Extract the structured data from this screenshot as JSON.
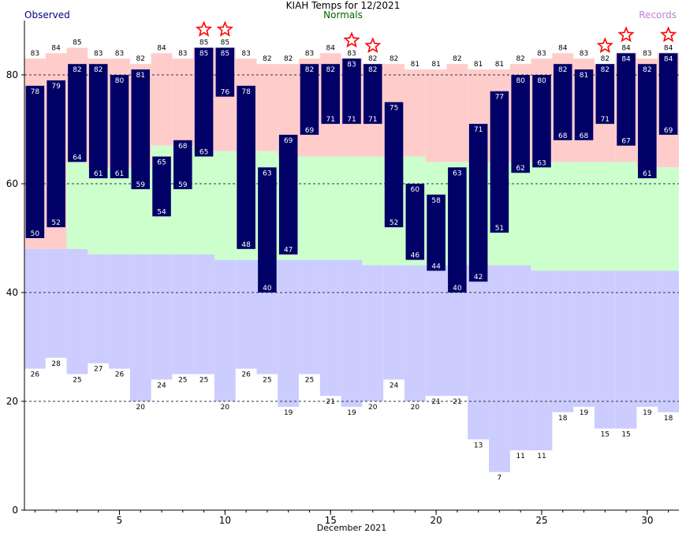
{
  "chart_data": {
    "type": "bar",
    "title": "KIAH Temps for 12/2021",
    "xlabel": "December 2021",
    "ylabel": "",
    "xlim": [
      0.5,
      31.5
    ],
    "ylim": [
      0,
      90
    ],
    "xticks": [
      5,
      10,
      15,
      20,
      25,
      30
    ],
    "yticks": [
      0,
      20,
      40,
      60,
      80
    ],
    "gridlines_y": [
      20,
      40,
      60,
      80
    ],
    "legend": {
      "observed": "Observed",
      "normals": "Normals",
      "records": "Records"
    },
    "colors": {
      "observed": "#000066",
      "record_band": "#ffcccc",
      "normal_band": "#ccffcc",
      "record_low_band": "#ccccff",
      "record_star": "#ff0000",
      "observed_legend": "#000080",
      "normals_legend": "#006400",
      "records_legend": "#c080d0"
    },
    "days": [
      1,
      2,
      3,
      4,
      5,
      6,
      7,
      8,
      9,
      10,
      11,
      12,
      13,
      14,
      15,
      16,
      17,
      18,
      19,
      20,
      21,
      22,
      23,
      24,
      25,
      26,
      27,
      28,
      29,
      30,
      31
    ],
    "observed_high": [
      78,
      79,
      82,
      82,
      80,
      81,
      65,
      68,
      85,
      85,
      78,
      63,
      69,
      82,
      82,
      83,
      82,
      75,
      60,
      58,
      63,
      71,
      77,
      80,
      80,
      82,
      81,
      82,
      84,
      82,
      84
    ],
    "observed_low": [
      50,
      52,
      64,
      61,
      61,
      59,
      54,
      59,
      65,
      76,
      48,
      40,
      47,
      69,
      71,
      71,
      71,
      52,
      46,
      44,
      40,
      42,
      51,
      62,
      63,
      68,
      68,
      71,
      67,
      61,
      69
    ],
    "normal_high": [
      48,
      48,
      64,
      63,
      63,
      63,
      67,
      67,
      66,
      66,
      66,
      66,
      65,
      65,
      65,
      65,
      65,
      65,
      65,
      64,
      64,
      64,
      64,
      64,
      64,
      64,
      64,
      64,
      64,
      63,
      63
    ],
    "normal_low": [
      48,
      48,
      48,
      47,
      47,
      47,
      47,
      47,
      47,
      46,
      46,
      46,
      46,
      46,
      46,
      46,
      45,
      45,
      45,
      45,
      45,
      45,
      45,
      45,
      44,
      44,
      44,
      44,
      44,
      44,
      44
    ],
    "record_high": [
      83,
      84,
      85,
      83,
      83,
      82,
      84,
      83,
      85,
      85,
      83,
      82,
      82,
      83,
      84,
      83,
      82,
      82,
      81,
      81,
      82,
      81,
      81,
      82,
      83,
      84,
      83,
      82,
      84,
      83,
      84
    ],
    "record_low": [
      26,
      28,
      25,
      27,
      26,
      20,
      24,
      25,
      25,
      20,
      26,
      25,
      19,
      25,
      21,
      19,
      20,
      24,
      20,
      21,
      21,
      13,
      7,
      11,
      11,
      18,
      19,
      15,
      15,
      19,
      18
    ],
    "record_set_days": [
      9,
      10,
      16,
      17,
      28,
      29,
      31
    ]
  }
}
